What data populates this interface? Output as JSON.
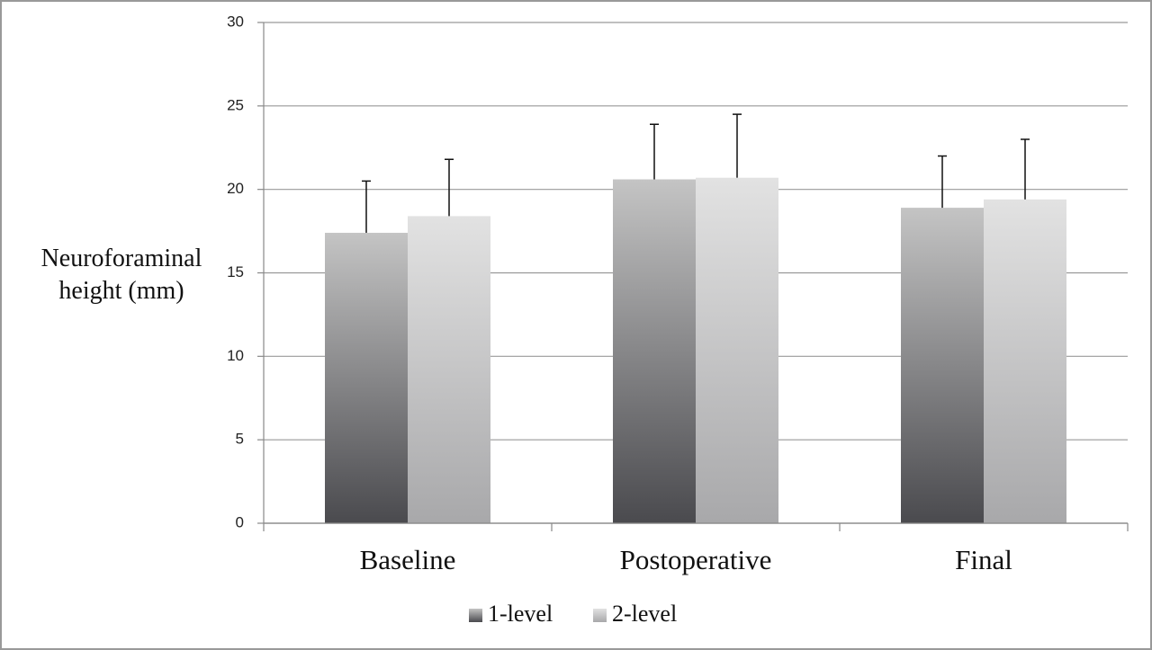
{
  "chart_data": {
    "type": "bar",
    "y_label": "Neuroforaminal height (mm)",
    "categories": [
      "Baseline",
      "Postoperative",
      "Final"
    ],
    "series": [
      {
        "name": "1-level",
        "color": "#c4c4c4",
        "values": [
          17.4,
          20.6,
          18.9
        ],
        "errors": [
          3.1,
          3.3,
          3.1
        ]
      },
      {
        "name": "2-level",
        "color": "#e2e2e2",
        "values": [
          18.4,
          20.7,
          19.4
        ],
        "errors": [
          3.4,
          3.8,
          3.6
        ]
      }
    ],
    "ylim": [
      0,
      30
    ],
    "yticks": [
      0,
      5,
      10,
      15,
      20,
      25,
      30
    ],
    "grid": true
  }
}
